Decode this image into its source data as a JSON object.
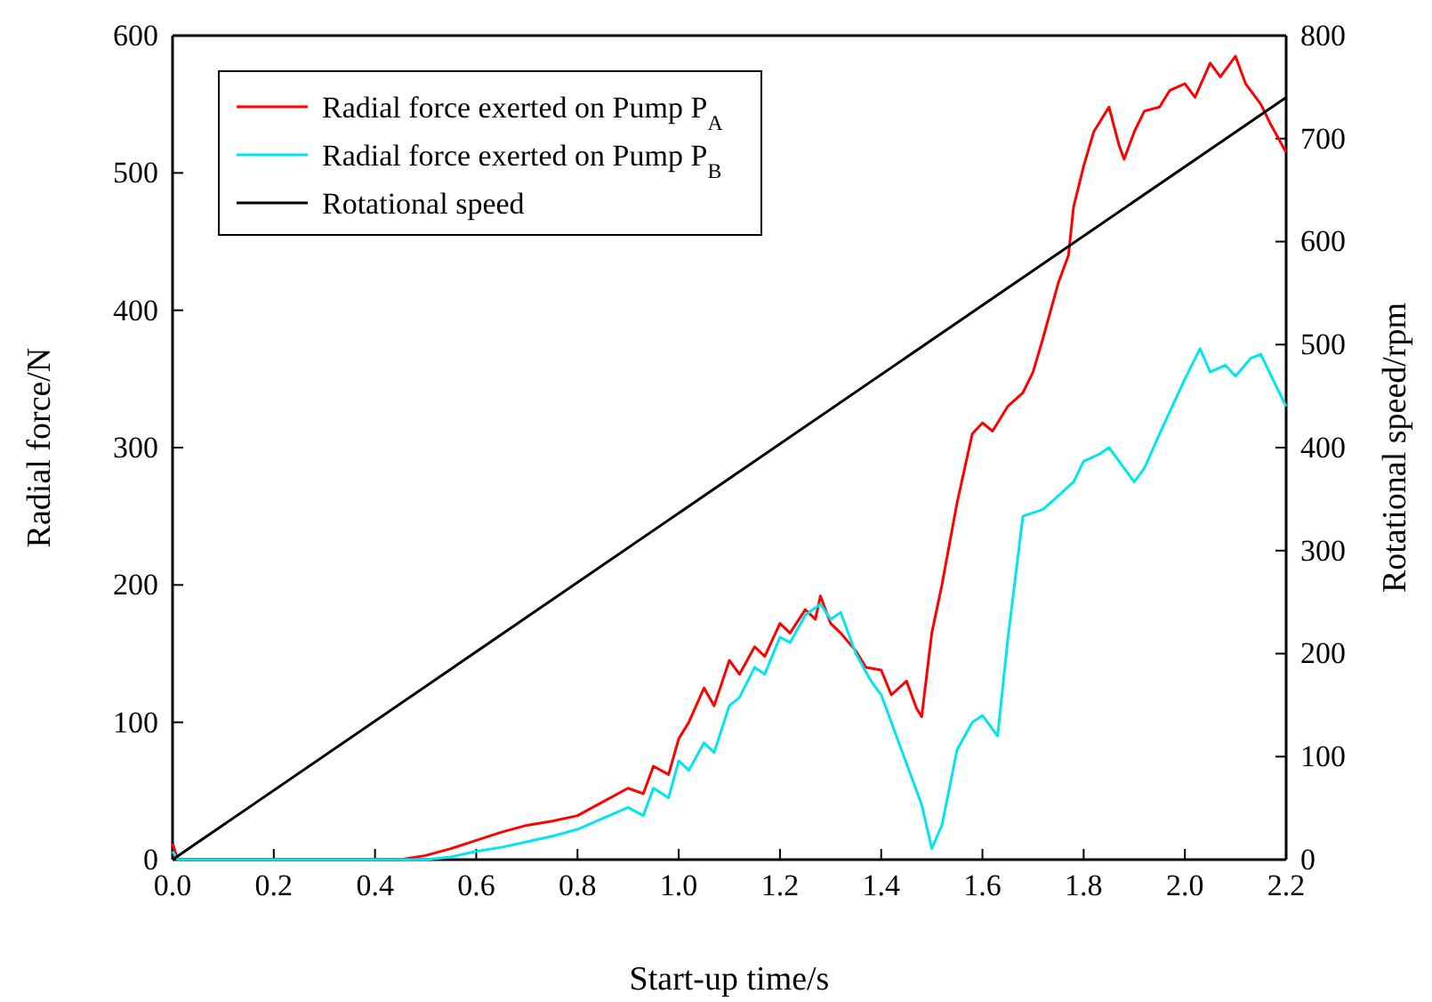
{
  "chart_data": {
    "type": "line",
    "xlabel": "Start-up time/s",
    "ylabel": "Radial force/N",
    "y2label": "Rotational speed/rpm",
    "xlim": [
      0,
      2.2
    ],
    "xticks": [
      {
        "value": 0,
        "label": "0.0"
      },
      {
        "value": 0.2,
        "label": "0.2"
      },
      {
        "value": 0.4,
        "label": "0.4"
      },
      {
        "value": 0.6,
        "label": "0.6"
      },
      {
        "value": 0.8,
        "label": "0.8"
      },
      {
        "value": 1,
        "label": "1.0"
      },
      {
        "value": 1.2,
        "label": "1.2"
      },
      {
        "value": 1.4,
        "label": "1.4"
      },
      {
        "value": 1.6,
        "label": "1.6"
      },
      {
        "value": 1.8,
        "label": "1.8"
      },
      {
        "value": 2,
        "label": "2.0"
      },
      {
        "value": 2.2,
        "label": "2.2"
      }
    ],
    "ylim": [
      0,
      600
    ],
    "yticks": [
      0,
      100,
      200,
      300,
      400,
      500,
      600
    ],
    "y2lim": [
      0,
      800
    ],
    "y2ticks": [
      0,
      100,
      200,
      300,
      400,
      500,
      600,
      700,
      800
    ],
    "legend": "top left",
    "series": [
      {
        "name": "Radial force exerted on Pump P$_{A}$",
        "color": "#ff0000",
        "x": [
          0,
          0.01,
          0.02,
          0.45,
          0.5,
          0.55,
          0.6,
          0.65,
          0.7,
          0.75,
          0.8,
          0.85,
          0.9,
          0.93,
          0.95,
          0.98,
          1.0,
          1.02,
          1.05,
          1.07,
          1.1,
          1.12,
          1.15,
          1.17,
          1.2,
          1.22,
          1.25,
          1.27,
          1.28,
          1.3,
          1.32,
          1.35,
          1.37,
          1.4,
          1.42,
          1.45,
          1.47,
          1.48,
          1.5,
          1.52,
          1.55,
          1.58,
          1.6,
          1.62,
          1.65,
          1.68,
          1.7,
          1.72,
          1.75,
          1.77,
          1.78,
          1.8,
          1.82,
          1.85,
          1.87,
          1.88,
          1.9,
          1.92,
          1.95,
          1.97,
          2.0,
          2.02,
          2.05,
          2.07,
          2.1,
          2.12,
          2.15,
          2.17,
          2.2
        ],
        "values": [
          12,
          0,
          0,
          0,
          3,
          8,
          14,
          20,
          25,
          28,
          32,
          42,
          52,
          48,
          68,
          62,
          88,
          100,
          125,
          112,
          145,
          135,
          155,
          148,
          172,
          165,
          182,
          175,
          192,
          172,
          165,
          152,
          140,
          138,
          120,
          130,
          110,
          104,
          165,
          200,
          260,
          310,
          318,
          312,
          330,
          340,
          355,
          380,
          420,
          440,
          475,
          505,
          530,
          548,
          520,
          510,
          530,
          545,
          548,
          560,
          565,
          555,
          580,
          570,
          585,
          565,
          550,
          535,
          515
        ]
      },
      {
        "name": "Radial force exerted on Pump P$_{B}$",
        "color": "#00e5ee",
        "x": [
          0,
          0.01,
          0.02,
          0.5,
          0.55,
          0.6,
          0.65,
          0.7,
          0.75,
          0.8,
          0.85,
          0.9,
          0.93,
          0.95,
          0.98,
          1.0,
          1.02,
          1.05,
          1.07,
          1.1,
          1.12,
          1.15,
          1.17,
          1.2,
          1.22,
          1.25,
          1.28,
          1.3,
          1.32,
          1.35,
          1.38,
          1.4,
          1.43,
          1.45,
          1.48,
          1.5,
          1.52,
          1.55,
          1.58,
          1.6,
          1.63,
          1.65,
          1.68,
          1.72,
          1.75,
          1.78,
          1.8,
          1.83,
          1.85,
          1.88,
          1.9,
          1.92,
          1.95,
          2.0,
          2.03,
          2.05,
          2.08,
          2.1,
          2.13,
          2.15,
          2.18,
          2.2
        ],
        "values": [
          6,
          0,
          0,
          0,
          2,
          6,
          9,
          13,
          17,
          22,
          30,
          38,
          32,
          52,
          45,
          72,
          65,
          85,
          78,
          112,
          118,
          140,
          135,
          162,
          158,
          178,
          186,
          175,
          180,
          150,
          130,
          120,
          90,
          70,
          40,
          8,
          25,
          80,
          100,
          105,
          90,
          160,
          250,
          255,
          265,
          275,
          290,
          295,
          300,
          285,
          275,
          285,
          310,
          350,
          372,
          355,
          360,
          352,
          365,
          368,
          345,
          330
        ]
      },
      {
        "name": "Rotational speed",
        "color": "#000000",
        "axis": "y2",
        "x": [
          0,
          2.2
        ],
        "values": [
          0,
          740
        ]
      }
    ]
  }
}
